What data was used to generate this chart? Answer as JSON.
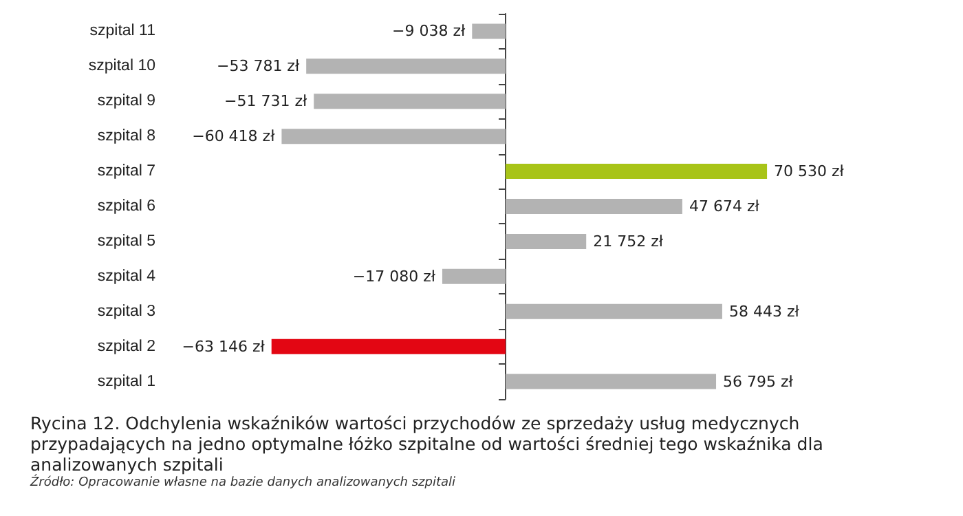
{
  "chart_data": {
    "type": "bar",
    "orientation": "horizontal",
    "title": "Rycina 12. Odchylenia wskaźników wartości przychodów ze sprzedaży usług medycznych przypadających na jedno optymalne łóżko szpitalne od wartości średniej tego wskaźnika dla analizowanych szpitali",
    "annotations": [
      "Źródło: Opracowanie własne na bazie danych analizowanych szpitali"
    ],
    "categories": [
      "szpital 11",
      "szpital 10",
      "szpital 9",
      "szpital 8",
      "szpital 7",
      "szpital 6",
      "szpital 5",
      "szpital 4",
      "szpital 3",
      "szpital 2",
      "szpital 1"
    ],
    "values": [
      -9038,
      -53781,
      -51731,
      -60418,
      70530,
      47674,
      21752,
      -17080,
      58443,
      -63146,
      56795
    ],
    "value_labels": [
      "−9 038 zł",
      "−53 781 zł",
      "−51 731 zł",
      "−60 418 zł",
      "70 530 zł",
      "47 674 zł",
      "21 752 zł",
      "−17 080 zł",
      "58 443 zł",
      "−63 146 zł",
      "56 795 zł"
    ],
    "colors": [
      "#b3b3b3",
      "#b3b3b3",
      "#b3b3b3",
      "#b3b3b3",
      "#a8c418",
      "#b3b3b3",
      "#b3b3b3",
      "#b3b3b3",
      "#b3b3b3",
      "#e30613",
      "#b3b3b3"
    ]
  }
}
